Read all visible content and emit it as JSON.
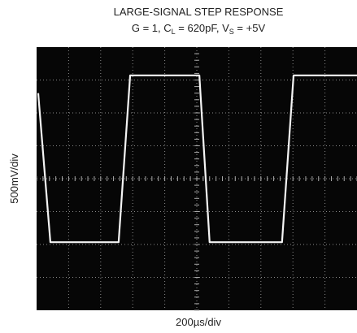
{
  "chart_data": {
    "type": "line",
    "title": "LARGE-SIGNAL STEP RESPONSE",
    "subtitle_parts": [
      "G = 1, C",
      "L",
      " = 620pF, V",
      "S",
      " = +5V"
    ],
    "x_label": "200µs/div",
    "y_label": "500mV/div",
    "x": [
      0.05,
      0.43,
      2.56,
      2.92,
      5.08,
      5.4,
      7.66,
      8.02,
      10
    ],
    "series": [
      {
        "color": "#f4f4f4",
        "values": [
          6.6,
          2.07,
          2.07,
          7.14,
          7.14,
          2.07,
          2.07,
          7.14,
          7.14
        ]
      }
    ],
    "xlim": [
      0,
      10
    ],
    "ylim": [
      0,
      8
    ],
    "grid": true
  }
}
